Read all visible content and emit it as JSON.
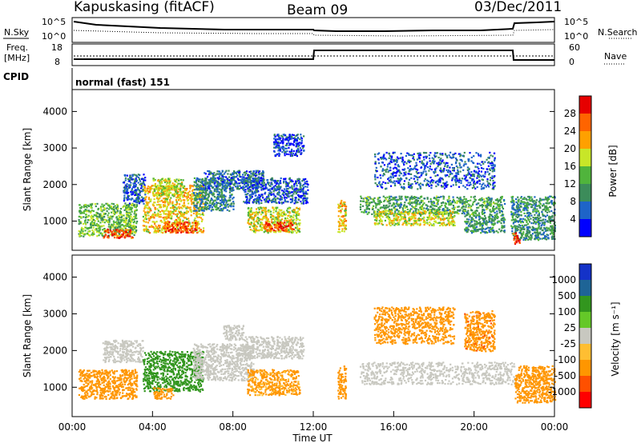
{
  "header": {
    "station": "Kapuskasing (fitACF)",
    "beam": "Beam 09",
    "date": "03/Dec/2011"
  },
  "status_panel": {
    "nsky_label": "N.Sky",
    "nsky_ticks": [
      "10^5",
      "10^0"
    ],
    "nsearch_label": "N.Search",
    "nsearch_ticks": [
      "10^5",
      "10^0"
    ],
    "freq_label_1": "Freq.",
    "freq_label_2": "[MHz]",
    "freq_ticks": [
      "18",
      "8"
    ],
    "nave_label": "Nave",
    "nave_ticks": [
      "60",
      "0"
    ],
    "cpid_label": "CPID",
    "cpid_value": "normal (fast) 151"
  },
  "colors": {
    "power_scale": [
      "#0000ff",
      "#1e64c8",
      "#3c8c5a",
      "#50b43c",
      "#c8e628",
      "#ffa000",
      "#ff6400",
      "#e60000"
    ],
    "velocity_scale": [
      "#ff0000",
      "#ff5000",
      "#ff9600",
      "#ffbe32",
      "#c8c8c0",
      "#64c828",
      "#32961e",
      "#1e6496",
      "#1432c8"
    ]
  },
  "chart_data": [
    {
      "type": "heatmap",
      "name": "power",
      "ylabel": "Slant Range [km]",
      "ylim": [
        200,
        4600
      ],
      "yticks": [
        "4000",
        "3000",
        "2000",
        "1000"
      ],
      "xlim": [
        0,
        24
      ],
      "colorbar_label": "Power [dB]",
      "colorbar_ticks": [
        "28",
        "24",
        "20",
        "16",
        "12",
        "8",
        "4"
      ],
      "colorbar_range": [
        0,
        32
      ],
      "regions": [
        {
          "t0": 0.3,
          "t1": 3.2,
          "r0": 600,
          "r1": 1500,
          "v": 14
        },
        {
          "t0": 1.5,
          "t1": 3.0,
          "r0": 550,
          "r1": 800,
          "v": 28
        },
        {
          "t0": 2.5,
          "t1": 3.6,
          "r0": 1500,
          "r1": 2300,
          "v": 6
        },
        {
          "t0": 3.5,
          "t1": 6.5,
          "r0": 700,
          "r1": 2000,
          "v": 20
        },
        {
          "t0": 4.0,
          "t1": 5.5,
          "r0": 1700,
          "r1": 2200,
          "v": 17
        },
        {
          "t0": 4.5,
          "t1": 6.2,
          "r0": 700,
          "r1": 1000,
          "v": 27
        },
        {
          "t0": 6.0,
          "t1": 8.0,
          "r0": 1300,
          "r1": 2200,
          "v": 9
        },
        {
          "t0": 6.5,
          "t1": 9.5,
          "r0": 1900,
          "r1": 2400,
          "v": 7
        },
        {
          "t0": 8.5,
          "t1": 11.7,
          "r0": 1500,
          "r1": 2200,
          "v": 6
        },
        {
          "t0": 8.7,
          "t1": 11.3,
          "r0": 700,
          "r1": 1400,
          "v": 18
        },
        {
          "t0": 9.5,
          "t1": 11.0,
          "r0": 750,
          "r1": 1000,
          "v": 28
        },
        {
          "t0": 10.0,
          "t1": 11.5,
          "r0": 2800,
          "r1": 3400,
          "v": 5
        },
        {
          "t0": 13.2,
          "t1": 13.6,
          "r0": 700,
          "r1": 1600,
          "v": 20
        },
        {
          "t0": 14.3,
          "t1": 21.5,
          "r0": 1200,
          "r1": 1700,
          "v": 12
        },
        {
          "t0": 15.0,
          "t1": 19.0,
          "r0": 900,
          "r1": 1300,
          "v": 18
        },
        {
          "t0": 15.0,
          "t1": 21.0,
          "r0": 1900,
          "r1": 2900,
          "v": 6
        },
        {
          "t0": 19.5,
          "t1": 21.5,
          "r0": 700,
          "r1": 1200,
          "v": 11
        },
        {
          "t0": 21.8,
          "t1": 24.0,
          "r0": 500,
          "r1": 1700,
          "v": 10
        },
        {
          "t0": 21.9,
          "t1": 22.3,
          "r0": 400,
          "r1": 700,
          "v": 28
        }
      ]
    },
    {
      "type": "heatmap",
      "name": "velocity",
      "ylabel": "Slant Range [km]",
      "ylim": [
        200,
        4600
      ],
      "yticks": [
        "4000",
        "3000",
        "2000",
        "1000"
      ],
      "xlim": [
        0,
        24
      ],
      "xticks": [
        "00:00",
        "04:00",
        "08:00",
        "12:00",
        "16:00",
        "20:00",
        "00:00"
      ],
      "xlabel": "Time UT",
      "colorbar_label": "Velocity [m s⁻¹]",
      "colorbar_ticks": [
        "1000",
        "500",
        "100",
        "25",
        "-25",
        "-100",
        "-500",
        "-1000"
      ],
      "regions": [
        {
          "t0": 0.3,
          "t1": 3.2,
          "r0": 700,
          "r1": 1500,
          "v": -150
        },
        {
          "t0": 1.5,
          "t1": 3.5,
          "r0": 1700,
          "r1": 2300,
          "v": 0
        },
        {
          "t0": 3.5,
          "t1": 6.5,
          "r0": 900,
          "r1": 2000,
          "v": 150
        },
        {
          "t0": 4.0,
          "t1": 5.0,
          "r0": 700,
          "r1": 1000,
          "v": -300
        },
        {
          "t0": 6.0,
          "t1": 9.0,
          "r0": 1200,
          "r1": 2200,
          "v": 0
        },
        {
          "t0": 7.5,
          "t1": 8.5,
          "r0": 2300,
          "r1": 2700,
          "v": 0
        },
        {
          "t0": 8.5,
          "t1": 11.5,
          "r0": 1800,
          "r1": 2400,
          "v": 0
        },
        {
          "t0": 8.7,
          "t1": 11.3,
          "r0": 800,
          "r1": 1500,
          "v": -120
        },
        {
          "t0": 13.2,
          "t1": 13.6,
          "r0": 700,
          "r1": 1600,
          "v": -200
        },
        {
          "t0": 14.3,
          "t1": 22.0,
          "r0": 1100,
          "r1": 1700,
          "v": 0
        },
        {
          "t0": 15.0,
          "t1": 19.0,
          "r0": 2200,
          "r1": 3200,
          "v": -300
        },
        {
          "t0": 19.5,
          "t1": 21.0,
          "r0": 2000,
          "r1": 3100,
          "v": -400
        },
        {
          "t0": 22.0,
          "t1": 24.0,
          "r0": 600,
          "r1": 1600,
          "v": -350
        }
      ]
    }
  ]
}
